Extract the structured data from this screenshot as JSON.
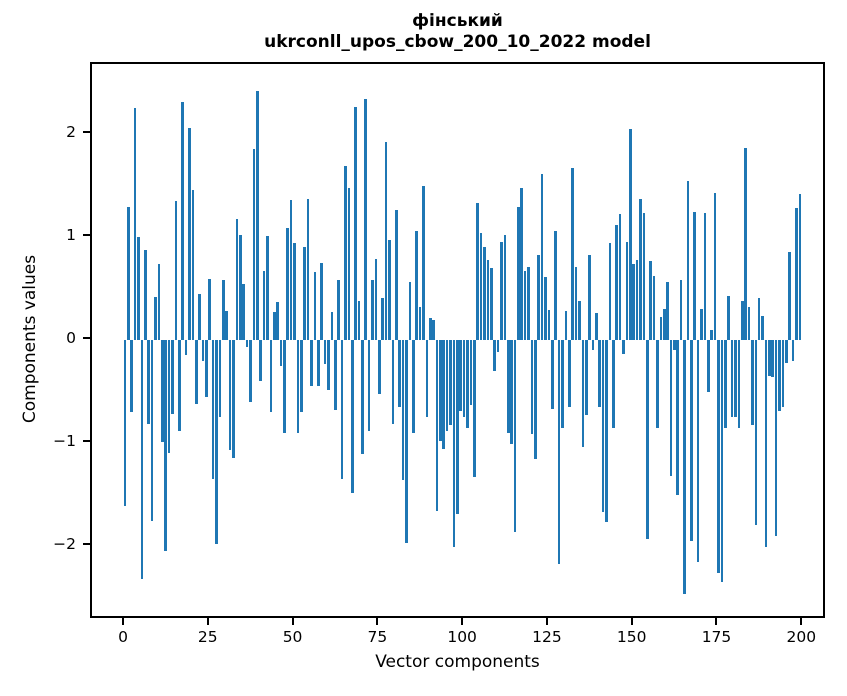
{
  "figure": {
    "title": "фінський",
    "subtitle": "ukrconll_upos_cbow_200_10_2022 model",
    "xlabel": "Vector components",
    "ylabel": "Components values"
  },
  "chart_data": {
    "type": "bar",
    "title": "фінський",
    "subtitle": "ukrconll_upos_cbow_200_10_2022 model",
    "xlabel": "Vector components",
    "ylabel": "Components values",
    "bar_color": "#1f77b4",
    "grid": false,
    "legend_position": "none",
    "x_ticks": [
      0,
      25,
      50,
      75,
      100,
      125,
      150,
      175,
      200
    ],
    "y_ticks": [
      2,
      1,
      0,
      -1,
      -2
    ],
    "y_tick_labels": [
      "2",
      "1",
      "0",
      "−1",
      "−2"
    ],
    "xlim": [
      -10,
      209
    ],
    "ylim": [
      -2.72,
      2.67
    ],
    "x_is_component_index": true,
    "values": [
      -1.61,
      1.29,
      -0.7,
      2.25,
      1.0,
      -2.32,
      0.87,
      -0.82,
      -1.76,
      0.42,
      0.74,
      -0.99,
      -2.05,
      -1.1,
      -0.72,
      1.35,
      -0.88,
      2.31,
      -0.15,
      2.06,
      1.46,
      -0.62,
      0.45,
      -0.2,
      -0.55,
      0.59,
      -1.35,
      -1.98,
      -0.75,
      0.58,
      0.28,
      -1.07,
      -1.15,
      1.17,
      1.02,
      0.54,
      -0.07,
      -0.6,
      1.85,
      2.42,
      -0.4,
      0.67,
      1.01,
      -0.7,
      0.27,
      0.37,
      -0.25,
      -0.9,
      1.09,
      1.36,
      0.94,
      -0.9,
      -0.7,
      0.9,
      1.37,
      -0.45,
      0.66,
      -0.45,
      0.75,
      -0.23,
      -0.49,
      0.27,
      -0.68,
      0.58,
      -1.35,
      1.69,
      1.48,
      -1.49,
      2.26,
      0.38,
      -1.11,
      2.34,
      -0.88,
      0.58,
      0.79,
      -0.52,
      0.41,
      1.92,
      0.97,
      -0.82,
      1.26,
      -0.65,
      -1.36,
      -1.97,
      0.56,
      -0.9,
      1.06,
      0.32,
      1.5,
      -0.75,
      0.21,
      0.19,
      -1.66,
      -0.98,
      -1.06,
      -0.88,
      -0.83,
      -2.01,
      -1.69,
      -0.69,
      -0.75,
      -0.85,
      -0.63,
      -1.33,
      1.33,
      1.04,
      0.9,
      0.78,
      0.7,
      -0.3,
      -0.12,
      0.95,
      1.02,
      -0.9,
      -1.01,
      -1.86,
      1.29,
      1.48,
      0.67,
      0.71,
      -0.91,
      -1.16,
      0.83,
      1.61,
      0.61,
      0.29,
      -0.67,
      1.06,
      -2.17,
      -0.85,
      0.28,
      -0.65,
      1.67,
      0.71,
      0.38,
      -1.04,
      -0.73,
      0.83,
      -0.1,
      0.26,
      -0.65,
      -1.67,
      -1.77,
      0.94,
      -0.85,
      1.12,
      1.22,
      -0.14,
      0.95,
      2.05,
      0.74,
      0.78,
      1.37,
      1.23,
      -1.93,
      0.77,
      0.62,
      -0.85,
      0.22,
      0.3,
      0.56,
      -1.32,
      -0.1,
      -1.5,
      0.58,
      -2.47,
      1.54,
      -1.95,
      1.24,
      -2.16,
      0.3,
      1.23,
      -0.5,
      0.1,
      1.43,
      -2.26,
      -2.35,
      -0.85,
      0.43,
      -0.75,
      -0.75,
      -0.85,
      0.38,
      1.86,
      0.32,
      -0.83,
      -1.8,
      0.41,
      0.23,
      -2.01,
      -0.35,
      -0.36,
      -1.9,
      -0.69,
      -0.65,
      -0.22,
      0.85,
      -0.2,
      1.28,
      1.42
    ]
  }
}
